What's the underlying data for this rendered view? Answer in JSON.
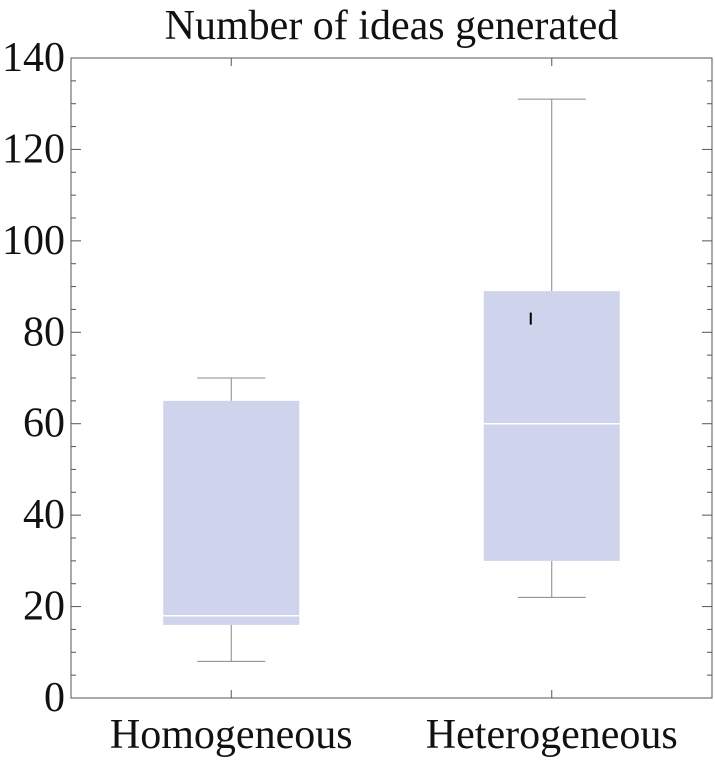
{
  "chart_data": {
    "type": "box",
    "title": "Number of ideas generated",
    "xlabel": "",
    "ylabel": "",
    "ylim": [
      0,
      140
    ],
    "yticks": [
      0,
      20,
      40,
      60,
      80,
      100,
      120,
      140
    ],
    "grid": false,
    "categories": [
      "Homogeneous",
      "Heterogeneous"
    ],
    "boxes": [
      {
        "category": "Homogeneous",
        "whisker_low": 8,
        "q1": 16,
        "median": 18,
        "q3": 65,
        "whisker_high": 70,
        "mean": null
      },
      {
        "category": "Heterogeneous",
        "whisker_low": 22,
        "q1": 30,
        "median": 60,
        "q3": 89,
        "whisker_high": 131,
        "mean": 83
      }
    ],
    "colors": {
      "box_fill": "#cfd3ec",
      "whisker": "#888888",
      "median": "#ffffff",
      "axis": "#555555",
      "text": "#111111"
    }
  }
}
